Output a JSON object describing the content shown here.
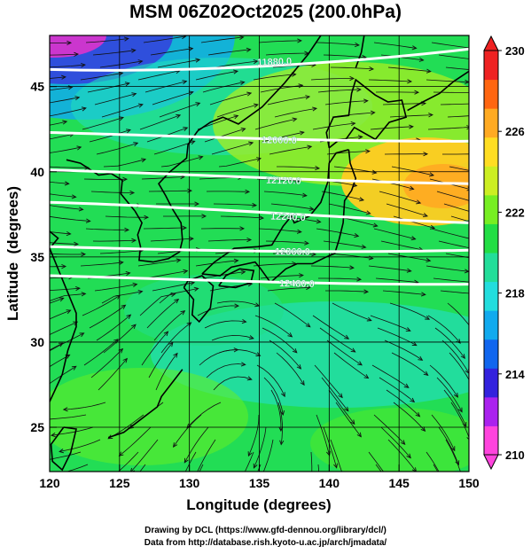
{
  "title": "MSM 06Z02Oct2025 (200.0hPa)",
  "x_axis": {
    "label": "Longitude (degrees)",
    "min": 120,
    "max": 150,
    "ticks": [
      "120",
      "125",
      "130",
      "135",
      "140",
      "145",
      "150"
    ]
  },
  "y_axis": {
    "label": "Latitude  (degrees)",
    "min": 22.4,
    "max": 48,
    "ticks": [
      "25",
      "30",
      "35",
      "40",
      "45"
    ]
  },
  "colorbar": {
    "min": 210,
    "max": 230,
    "ticks": [
      "210",
      "214",
      "218",
      "222",
      "226",
      "230"
    ],
    "colors": [
      "#ff44dd",
      "#aa22ee",
      "#3322dd",
      "#1166ee",
      "#11aaee",
      "#22dddd",
      "#22dd99",
      "#22dd44",
      "#77ee22",
      "#ccee22",
      "#ffdd22",
      "#ffaa22",
      "#ff6611",
      "#ee2222"
    ]
  },
  "contours": [
    {
      "label": "11880.0",
      "lat_start": 46.0,
      "lat_end": 47.2
    },
    {
      "label": "12000.0",
      "lat_start": 42.3,
      "lat_end": 41.8
    },
    {
      "label": "12120.0",
      "lat_start": 40.1,
      "lat_end": 39.3
    },
    {
      "label": "12240.0",
      "lat_start": 38.2,
      "lat_end": 37.0
    },
    {
      "label": "12360.0",
      "lat_start": 35.6,
      "lat_end": 35.4
    },
    {
      "label": "12480.0",
      "lat_start": 33.9,
      "lat_end": 33.4
    }
  ],
  "credits": [
    "Drawing by DCL (https://www.gfd-dennou.org/library/dcl/)",
    "Data from http://database.rish.kyoto-u.ac.jp/arch/jmadata/"
  ]
}
